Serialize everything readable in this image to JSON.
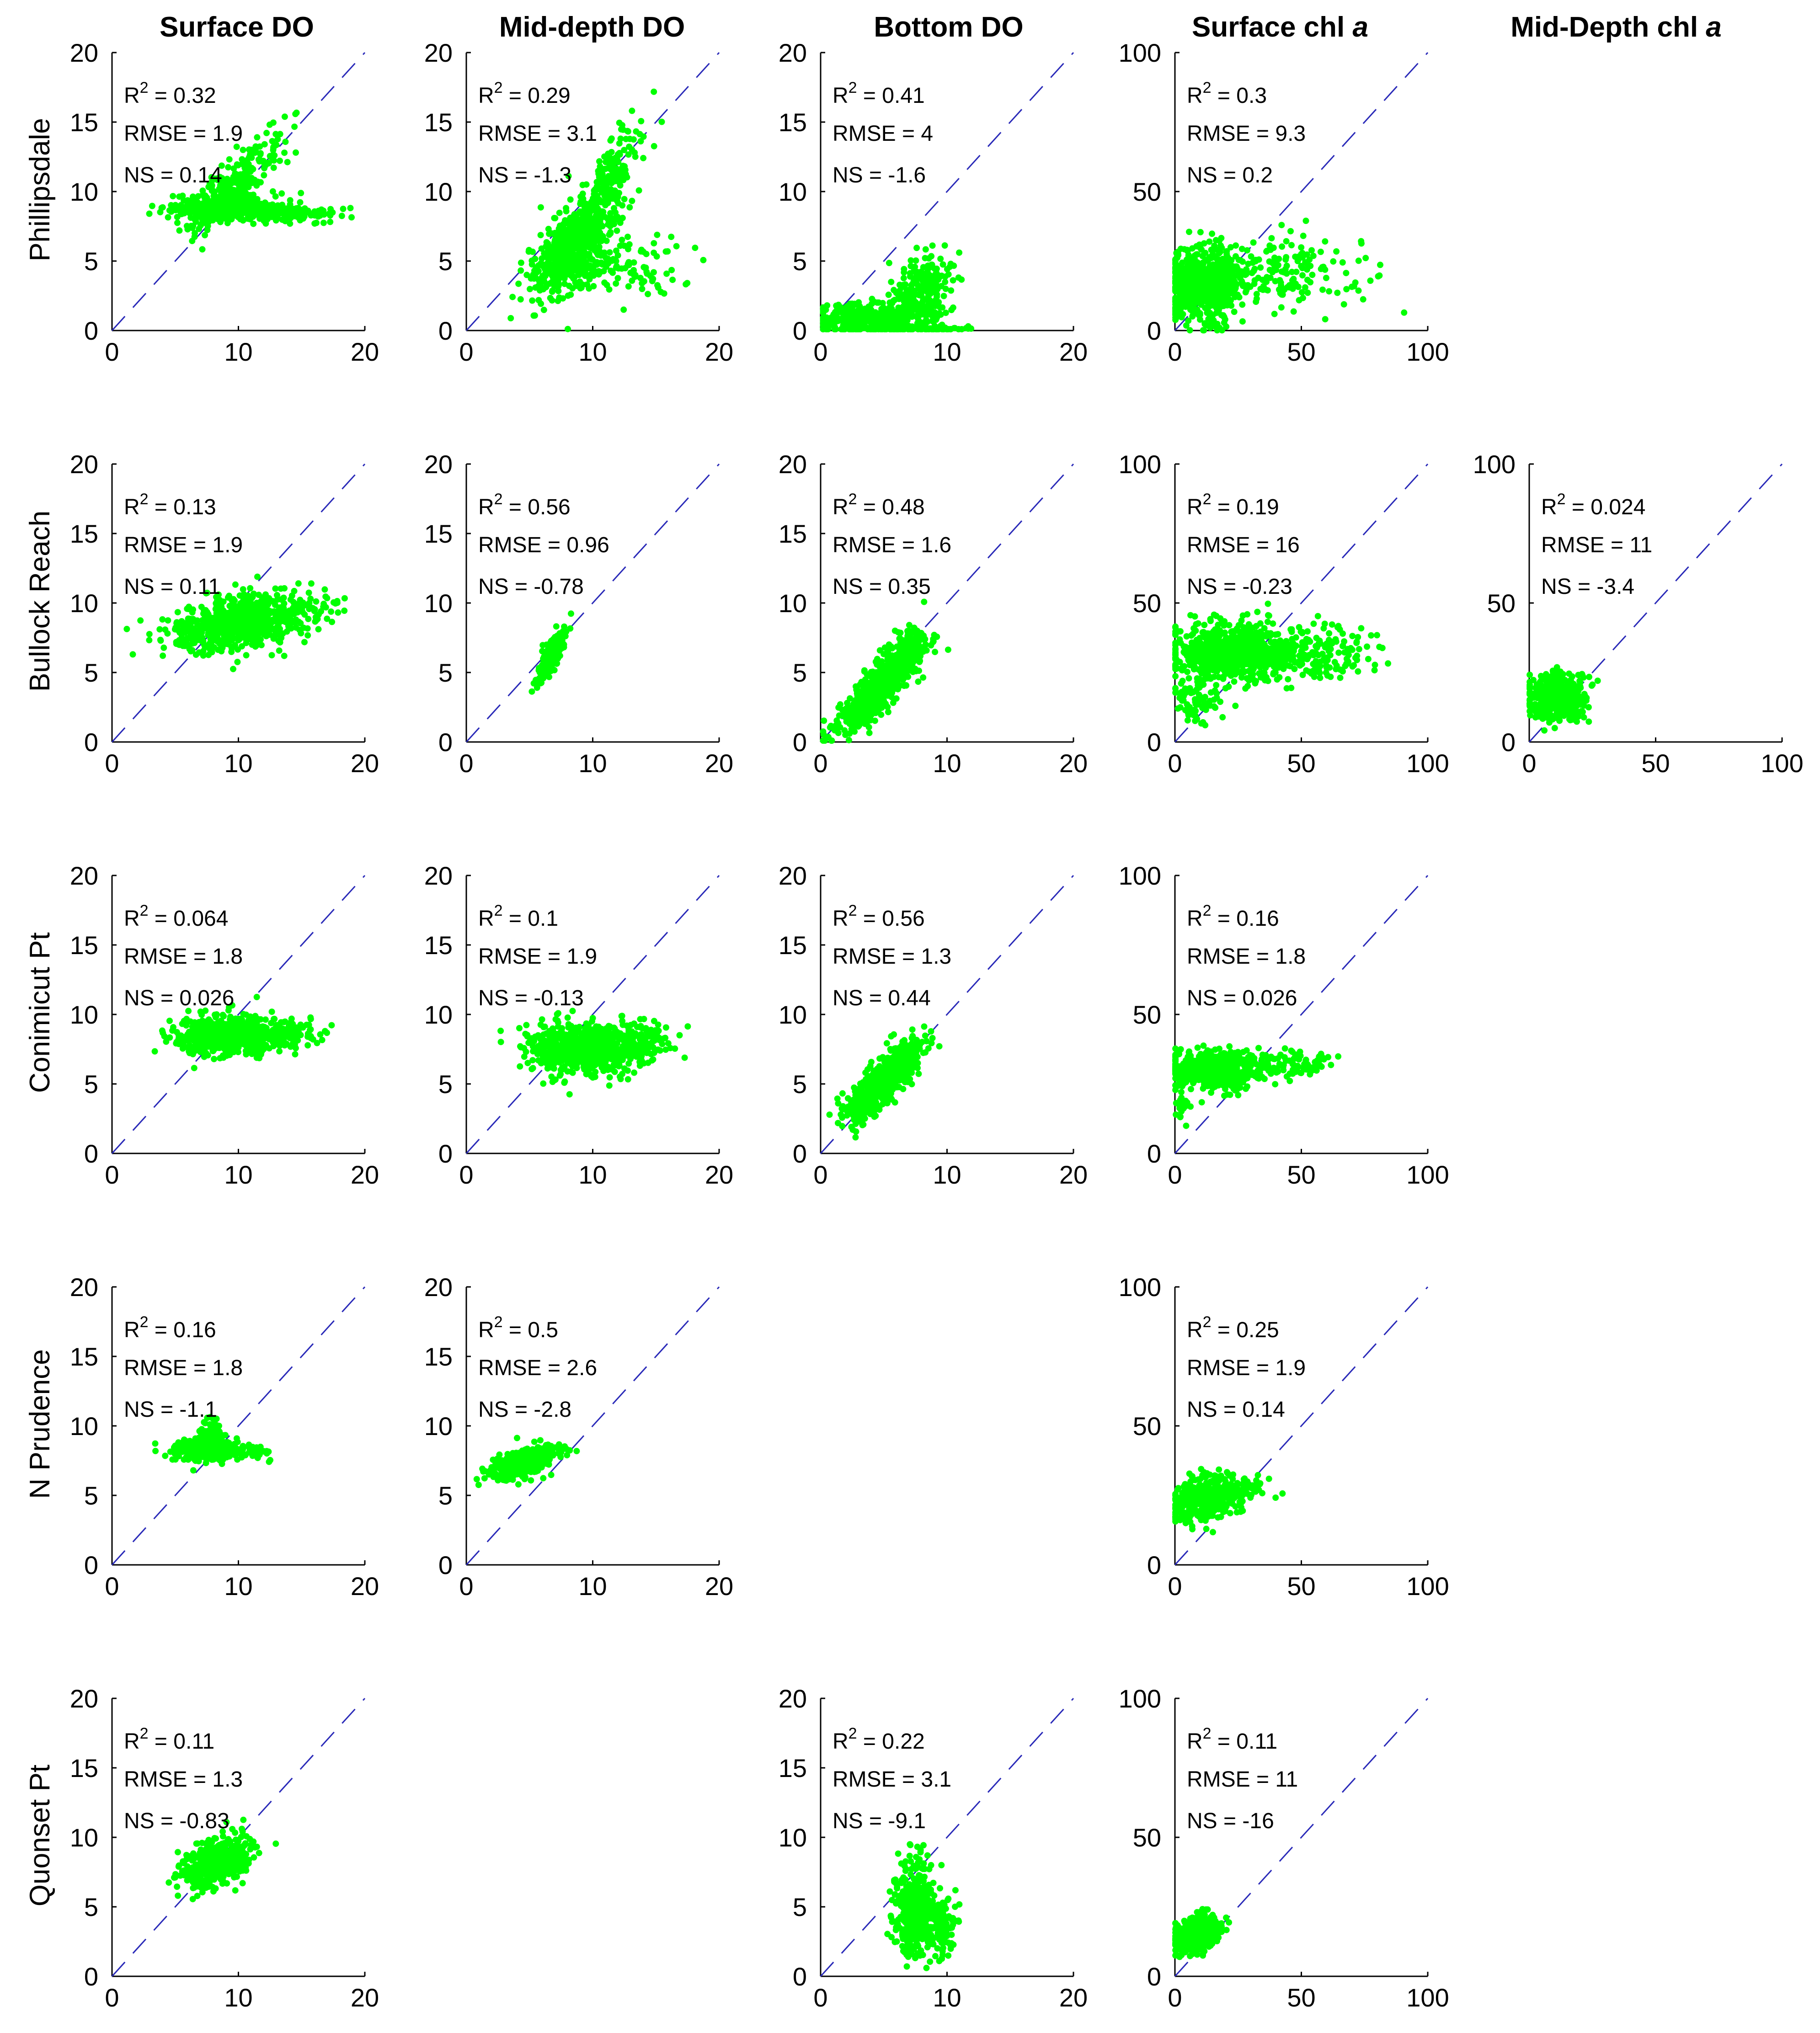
{
  "chart_data": {
    "type": "scatter",
    "colors": {
      "points": "#00ff00",
      "one_to_one": "#2a2ab8",
      "axes": "#000000"
    },
    "columns": [
      {
        "title": "Surface DO"
      },
      {
        "title": "Mid-depth DO"
      },
      {
        "title": "Bottom DO"
      },
      {
        "title": "Surface chl",
        "title_italic": "a"
      },
      {
        "title": "Mid-Depth chl",
        "title_italic": "a"
      }
    ],
    "rows": [
      {
        "label": "Phillipsdale"
      },
      {
        "label": "Bullock Reach"
      },
      {
        "label": "Conimicut Pt"
      },
      {
        "label": "N Prudence"
      },
      {
        "label": "Quonset Pt"
      }
    ],
    "panels": [
      {
        "row": 0,
        "col": 0,
        "xlim": [
          0,
          20
        ],
        "ylim": [
          0,
          20
        ],
        "xticks": [
          "0",
          "10",
          "20"
        ],
        "yticks": [
          "0",
          "5",
          "10",
          "15",
          "20"
        ],
        "stats": {
          "r2": "0.32",
          "rmse": "1.9",
          "ns": "0.14"
        },
        "clusters": [
          {
            "cx": 9,
            "cy": 8.8,
            "sx": 2.2,
            "sy": 0.45,
            "n": 320
          },
          {
            "cx": 9.5,
            "cy": 10.5,
            "sx": 2.0,
            "sy": 1.8,
            "n": 260,
            "corr": 0.85
          },
          {
            "cx": 14,
            "cy": 8.4,
            "sx": 2.0,
            "sy": 0.3,
            "n": 120
          }
        ]
      },
      {
        "row": 0,
        "col": 1,
        "xlim": [
          0,
          20
        ],
        "ylim": [
          0,
          20
        ],
        "xticks": [
          "0",
          "10",
          "20"
        ],
        "yticks": [
          "0",
          "5",
          "10",
          "15",
          "20"
        ],
        "stats": {
          "r2": "0.29",
          "rmse": "3.1",
          "ns": "-1.3"
        },
        "clusters": [
          {
            "cx": 8.5,
            "cy": 6,
            "sx": 1.6,
            "sy": 1.7,
            "n": 650,
            "corr": 0.6
          },
          {
            "cx": 11,
            "cy": 10.5,
            "sx": 1.4,
            "sy": 2.2,
            "n": 180,
            "corr": 0.8
          },
          {
            "cx": 12,
            "cy": 4.5,
            "sx": 2.5,
            "sy": 1.0,
            "n": 120
          }
        ]
      },
      {
        "row": 0,
        "col": 2,
        "xlim": [
          0,
          20
        ],
        "ylim": [
          0,
          20
        ],
        "xticks": [
          "0",
          "10",
          "20"
        ],
        "yticks": [
          "0",
          "5",
          "10",
          "15",
          "20"
        ],
        "stats": {
          "r2": "0.41",
          "rmse": "4",
          "ns": "-1.6"
        },
        "clusters": [
          {
            "cx": 4,
            "cy": 0.8,
            "sx": 2.2,
            "sy": 0.6,
            "n": 420
          },
          {
            "cx": 8,
            "cy": 3,
            "sx": 1.2,
            "sy": 1.4,
            "n": 220,
            "corr": 0.4
          },
          {
            "cx": 9,
            "cy": 0.1,
            "sx": 1.5,
            "sy": 0.1,
            "n": 60
          }
        ]
      },
      {
        "row": 0,
        "col": 3,
        "xlim": [
          0,
          100
        ],
        "ylim": [
          0,
          100
        ],
        "xticks": [
          "0",
          "50",
          "100"
        ],
        "yticks": [
          "0",
          "50",
          "100"
        ],
        "stats": {
          "r2": "0.3",
          "rmse": "9.3",
          "ns": "0.2"
        },
        "clusters": [
          {
            "cx": 12,
            "cy": 17,
            "sx": 8,
            "sy": 7,
            "n": 600
          },
          {
            "cx": 40,
            "cy": 20,
            "sx": 15,
            "sy": 7,
            "n": 160
          },
          {
            "cx": 75,
            "cy": 22,
            "sx": 8,
            "sy": 10,
            "n": 15
          }
        ]
      },
      {
        "row": 1,
        "col": 0,
        "xlim": [
          0,
          20
        ],
        "ylim": [
          0,
          20
        ],
        "xticks": [
          "0",
          "10",
          "20"
        ],
        "yticks": [
          "0",
          "5",
          "10",
          "15",
          "20"
        ],
        "stats": {
          "r2": "0.13",
          "rmse": "1.9",
          "ns": "0.11"
        },
        "clusters": [
          {
            "cx": 10,
            "cy": 8.6,
            "sx": 2.6,
            "sy": 1.0,
            "n": 700,
            "corr": 0.3
          },
          {
            "cx": 16,
            "cy": 9.3,
            "sx": 1.3,
            "sy": 0.6,
            "n": 40
          }
        ]
      },
      {
        "row": 1,
        "col": 1,
        "xlim": [
          0,
          20
        ],
        "ylim": [
          0,
          20
        ],
        "xticks": [
          "0",
          "10",
          "20"
        ],
        "yticks": [
          "0",
          "5",
          "10",
          "15",
          "20"
        ],
        "stats": {
          "r2": "0.56",
          "rmse": "0.96",
          "ns": "-0.78"
        },
        "clusters": [
          {
            "cx": 6.8,
            "cy": 6.3,
            "sx": 0.5,
            "sy": 0.8,
            "n": 320,
            "corr": 0.8
          }
        ]
      },
      {
        "row": 1,
        "col": 2,
        "xlim": [
          0,
          20
        ],
        "ylim": [
          0,
          20
        ],
        "xticks": [
          "0",
          "10",
          "20"
        ],
        "yticks": [
          "0",
          "5",
          "10",
          "15",
          "20"
        ],
        "stats": {
          "r2": "0.48",
          "rmse": "1.6",
          "ns": "0.35"
        },
        "clusters": [
          {
            "cx": 4,
            "cy": 3.2,
            "sx": 1.3,
            "sy": 1.3,
            "n": 400,
            "corr": 0.75
          },
          {
            "cx": 6.5,
            "cy": 6,
            "sx": 1.1,
            "sy": 1.1,
            "n": 300,
            "corr": 0.6
          }
        ]
      },
      {
        "row": 1,
        "col": 3,
        "xlim": [
          0,
          100
        ],
        "ylim": [
          0,
          100
        ],
        "xticks": [
          "0",
          "50",
          "100"
        ],
        "yticks": [
          "0",
          "50",
          "100"
        ],
        "stats": {
          "r2": "0.19",
          "rmse": "16",
          "ns": "-0.23"
        },
        "clusters": [
          {
            "cx": 22,
            "cy": 32,
            "sx": 12,
            "sy": 5,
            "n": 700
          },
          {
            "cx": 55,
            "cy": 32,
            "sx": 12,
            "sy": 5,
            "n": 180
          },
          {
            "cx": 8,
            "cy": 15,
            "sx": 4,
            "sy": 4,
            "n": 70
          }
        ]
      },
      {
        "row": 1,
        "col": 4,
        "xlim": [
          0,
          100
        ],
        "ylim": [
          0,
          100
        ],
        "xticks": [
          "0",
          "50",
          "100"
        ],
        "yticks": [
          "0",
          "50",
          "100"
        ],
        "stats": {
          "r2": "0.024",
          "rmse": "11",
          "ns": "-3.4"
        },
        "clusters": [
          {
            "cx": 11,
            "cy": 16,
            "sx": 5,
            "sy": 4,
            "n": 550
          }
        ]
      },
      {
        "row": 2,
        "col": 0,
        "xlim": [
          0,
          20
        ],
        "ylim": [
          0,
          20
        ],
        "xticks": [
          "0",
          "10",
          "20"
        ],
        "yticks": [
          "0",
          "5",
          "10",
          "15",
          "20"
        ],
        "stats": {
          "r2": "0.064",
          "rmse": "1.8",
          "ns": "0.026"
        },
        "clusters": [
          {
            "cx": 9.5,
            "cy": 8.5,
            "sx": 2.2,
            "sy": 0.7,
            "n": 650
          },
          {
            "cx": 14,
            "cy": 8.8,
            "sx": 1.3,
            "sy": 0.4,
            "n": 60
          }
        ]
      },
      {
        "row": 2,
        "col": 1,
        "xlim": [
          0,
          20
        ],
        "ylim": [
          0,
          20
        ],
        "xticks": [
          "0",
          "10",
          "20"
        ],
        "yticks": [
          "0",
          "5",
          "10",
          "15",
          "20"
        ],
        "stats": {
          "r2": "0.1",
          "rmse": "1.9",
          "ns": "-0.13"
        },
        "clusters": [
          {
            "cx": 9.5,
            "cy": 7.6,
            "sx": 2.3,
            "sy": 0.9,
            "n": 750
          },
          {
            "cx": 14.5,
            "cy": 8.2,
            "sx": 1.2,
            "sy": 0.6,
            "n": 50
          }
        ]
      },
      {
        "row": 2,
        "col": 2,
        "xlim": [
          0,
          20
        ],
        "ylim": [
          0,
          20
        ],
        "xticks": [
          "0",
          "10",
          "20"
        ],
        "yticks": [
          "0",
          "5",
          "10",
          "15",
          "20"
        ],
        "stats": {
          "r2": "0.56",
          "rmse": "1.3",
          "ns": "0.44"
        },
        "clusters": [
          {
            "cx": 4,
            "cy": 4.2,
            "sx": 1.2,
            "sy": 1.2,
            "n": 300,
            "corr": 0.7
          },
          {
            "cx": 6.2,
            "cy": 6.5,
            "sx": 1.0,
            "sy": 1.0,
            "n": 250,
            "corr": 0.6
          }
        ]
      },
      {
        "row": 2,
        "col": 3,
        "xlim": [
          0,
          100
        ],
        "ylim": [
          0,
          100
        ],
        "xticks": [
          "0",
          "50",
          "100"
        ],
        "yticks": [
          "0",
          "50",
          "100"
        ],
        "stats": {
          "r2": "0.16",
          "rmse": "1.8",
          "ns": "0.026"
        },
        "clusters": [
          {
            "cx": 15,
            "cy": 30,
            "sx": 9,
            "sy": 3.5,
            "n": 550
          },
          {
            "cx": 45,
            "cy": 32,
            "sx": 8,
            "sy": 2.5,
            "n": 100
          },
          {
            "cx": 3,
            "cy": 17,
            "sx": 1.2,
            "sy": 3.5,
            "n": 30
          }
        ]
      },
      {
        "row": 3,
        "col": 0,
        "xlim": [
          0,
          20
        ],
        "ylim": [
          0,
          20
        ],
        "xticks": [
          "0",
          "10",
          "20"
        ],
        "yticks": [
          "0",
          "5",
          "10",
          "15",
          "20"
        ],
        "stats": {
          "r2": "0.16",
          "rmse": "1.8",
          "ns": "-1.1"
        },
        "clusters": [
          {
            "cx": 7.5,
            "cy": 8.3,
            "sx": 1.3,
            "sy": 0.4,
            "n": 380
          },
          {
            "cx": 8,
            "cy": 9.3,
            "sx": 0.5,
            "sy": 0.5,
            "n": 100
          },
          {
            "cx": 11,
            "cy": 8.2,
            "sx": 0.8,
            "sy": 0.3,
            "n": 40
          }
        ]
      },
      {
        "row": 3,
        "col": 1,
        "xlim": [
          0,
          20
        ],
        "ylim": [
          0,
          20
        ],
        "xticks": [
          "0",
          "10",
          "20"
        ],
        "yticks": [
          "0",
          "5",
          "10",
          "15",
          "20"
        ],
        "stats": {
          "r2": "0.5",
          "rmse": "2.6",
          "ns": "-2.8"
        },
        "clusters": [
          {
            "cx": 4.6,
            "cy": 7.3,
            "sx": 1.4,
            "sy": 0.6,
            "n": 380,
            "corr": 0.6
          }
        ]
      },
      {
        "row": 3,
        "col": 3,
        "xlim": [
          0,
          100
        ],
        "ylim": [
          0,
          100
        ],
        "xticks": [
          "0",
          "50",
          "100"
        ],
        "yticks": [
          "0",
          "50",
          "100"
        ],
        "stats": {
          "r2": "0.25",
          "rmse": "1.9",
          "ns": "0.14"
        },
        "clusters": [
          {
            "cx": 12,
            "cy": 24,
            "sx": 7,
            "sy": 4,
            "n": 420,
            "corr": 0.3
          },
          {
            "cx": 30,
            "cy": 28,
            "sx": 5,
            "sy": 2,
            "n": 40
          }
        ]
      },
      {
        "row": 4,
        "col": 0,
        "xlim": [
          0,
          20
        ],
        "ylim": [
          0,
          20
        ],
        "xticks": [
          "0",
          "10",
          "20"
        ],
        "yticks": [
          "0",
          "5",
          "10",
          "15",
          "20"
        ],
        "stats": {
          "r2": "0.11",
          "rmse": "1.3",
          "ns": "-0.83"
        },
        "clusters": [
          {
            "cx": 8.2,
            "cy": 8.3,
            "sx": 1.3,
            "sy": 0.9,
            "n": 450,
            "corr": 0.3
          }
        ]
      },
      {
        "row": 4,
        "col": 2,
        "xlim": [
          0,
          20
        ],
        "ylim": [
          0,
          20
        ],
        "xticks": [
          "0",
          "10",
          "20"
        ],
        "yticks": [
          "0",
          "5",
          "10",
          "15",
          "20"
        ],
        "stats": {
          "r2": "0.22",
          "rmse": "3.1",
          "ns": "-9.1"
        },
        "clusters": [
          {
            "cx": 7.5,
            "cy": 4.8,
            "sx": 0.8,
            "sy": 1.6,
            "n": 450
          },
          {
            "cx": 9.5,
            "cy": 3.5,
            "sx": 0.7,
            "sy": 1.2,
            "n": 120
          }
        ]
      },
      {
        "row": 4,
        "col": 3,
        "xlim": [
          0,
          100
        ],
        "ylim": [
          0,
          100
        ],
        "xticks": [
          "0",
          "50",
          "100"
        ],
        "yticks": [
          "0",
          "50",
          "100"
        ],
        "stats": {
          "r2": "0.11",
          "rmse": "11",
          "ns": "-16"
        },
        "clusters": [
          {
            "cx": 8,
            "cy": 15,
            "sx": 4.5,
            "sy": 3.5,
            "n": 420,
            "corr": 0.3
          }
        ]
      }
    ]
  }
}
